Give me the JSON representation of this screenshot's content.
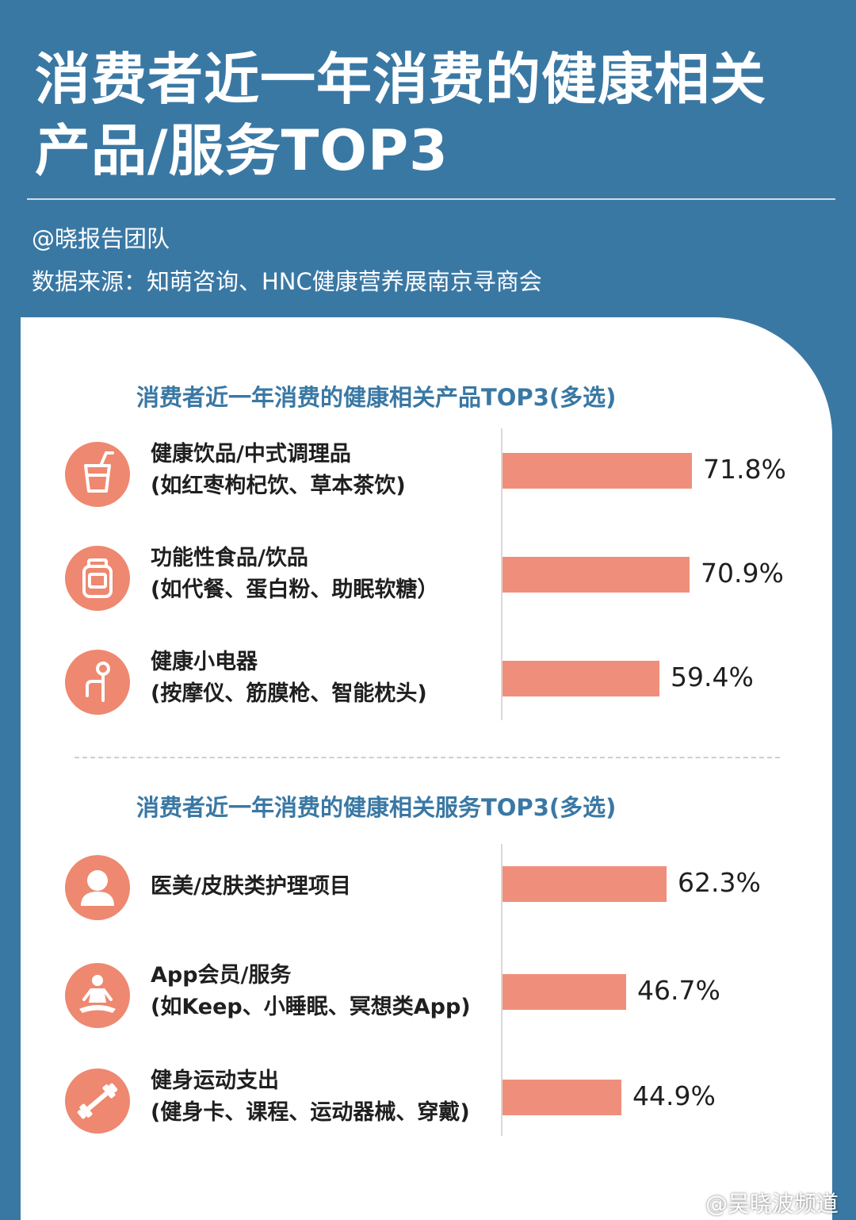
{
  "header": {
    "title_line1": "消费者近一年消费的健康相关",
    "title_line2": "产品/服务TOP3",
    "author": "@晓报告团队",
    "source": "数据来源：知萌咨询、HNC健康营养展南京寻商会"
  },
  "watermark": "@吴晓波频道",
  "colors": {
    "background": "#3a78a4",
    "bar": "#ef8f7b",
    "icon_circle": "#ee8870",
    "section_title": "#3a78a4"
  },
  "chart_data": [
    {
      "type": "bar",
      "orientation": "horizontal",
      "title": "消费者近一年消费的健康相关产品TOP3(多选)",
      "categories": [
        {
          "name": "健康饮品/中式调理品",
          "detail": "(如红枣枸杞饮、草本茶饮)",
          "icon": "drink-cup-icon"
        },
        {
          "name": "功能性食品/饮品",
          "detail": "(如代餐、蛋白粉、助眠软糖）",
          "icon": "supplement-jar-icon"
        },
        {
          "name": "健康小电器",
          "detail": "(按摩仪、筋膜枪、智能枕头)",
          "icon": "massager-icon"
        }
      ],
      "values": [
        71.8,
        70.9,
        59.4
      ],
      "value_labels": [
        "71.8%",
        "70.9%",
        "59.4%"
      ],
      "unit": "%"
    },
    {
      "type": "bar",
      "orientation": "horizontal",
      "title": "消费者近一年消费的健康相关服务TOP3(多选)",
      "categories": [
        {
          "name": "医美/皮肤类护理项目",
          "detail": "",
          "icon": "person-beauty-icon"
        },
        {
          "name": "App会员/服务",
          "detail": "(如Keep、小睡眠、冥想类App)",
          "icon": "meditation-icon"
        },
        {
          "name": "健身运动支出",
          "detail": "(健身卡、课程、运动器械、穿戴)",
          "icon": "dumbbell-icon"
        }
      ],
      "values": [
        62.3,
        46.7,
        44.9
      ],
      "value_labels": [
        "62.3%",
        "46.7%",
        "44.9%"
      ],
      "unit": "%"
    }
  ]
}
